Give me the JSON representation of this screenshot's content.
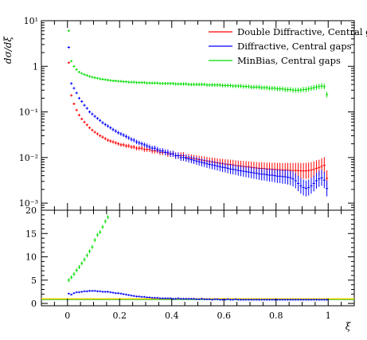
{
  "chart_data": [
    {
      "type": "scatter",
      "panel": "main",
      "ylabel": "dσ/dξ",
      "ylog": true,
      "ylim": [
        0.0007,
        10
      ],
      "xlim": [
        -0.1,
        1.1
      ],
      "y_tick_labels": [
        "10⁻³",
        "10⁻²",
        "10⁻¹",
        "1",
        "10¹"
      ],
      "legend_position": "top-right",
      "series": [
        {
          "name": "Double Diffractive, Central gaps",
          "color": "#ff0000",
          "x": [
            0.005,
            0.015,
            0.025,
            0.035,
            0.045,
            0.055,
            0.065,
            0.075,
            0.085,
            0.095,
            0.105,
            0.115,
            0.125,
            0.135,
            0.145,
            0.155,
            0.165,
            0.175,
            0.185,
            0.195,
            0.205,
            0.215,
            0.225,
            0.235,
            0.245,
            0.255,
            0.265,
            0.275,
            0.285,
            0.295,
            0.305,
            0.315,
            0.325,
            0.335,
            0.345,
            0.355,
            0.365,
            0.375,
            0.385,
            0.395,
            0.405,
            0.415,
            0.425,
            0.435,
            0.445,
            0.455,
            0.465,
            0.475,
            0.485,
            0.495,
            0.505,
            0.515,
            0.525,
            0.535,
            0.545,
            0.555,
            0.565,
            0.575,
            0.585,
            0.595,
            0.605,
            0.615,
            0.625,
            0.635,
            0.645,
            0.655,
            0.665,
            0.675,
            0.685,
            0.695,
            0.705,
            0.715,
            0.725,
            0.735,
            0.745,
            0.755,
            0.765,
            0.775,
            0.785,
            0.795,
            0.805,
            0.815,
            0.825,
            0.835,
            0.845,
            0.855,
            0.865,
            0.875,
            0.885,
            0.895,
            0.905,
            0.915,
            0.925,
            0.935,
            0.945,
            0.955,
            0.965,
            0.975,
            0.985,
            0.995
          ],
          "y": [
            1.2,
            0.23,
            0.15,
            0.11,
            0.085,
            0.07,
            0.06,
            0.052,
            0.045,
            0.04,
            0.036,
            0.033,
            0.03,
            0.028,
            0.026,
            0.024,
            0.023,
            0.022,
            0.021,
            0.02,
            0.019,
            0.019,
            0.018,
            0.018,
            0.017,
            0.017,
            0.016,
            0.016,
            0.016,
            0.015,
            0.015,
            0.015,
            0.014,
            0.014,
            0.014,
            0.013,
            0.013,
            0.013,
            0.012,
            0.012,
            0.012,
            0.011,
            0.011,
            0.011,
            0.011,
            0.01,
            0.01,
            0.0098,
            0.0095,
            0.0093,
            0.009,
            0.0088,
            0.0086,
            0.0084,
            0.0082,
            0.008,
            0.0079,
            0.0077,
            0.0075,
            0.0074,
            0.0072,
            0.0071,
            0.007,
            0.0069,
            0.0067,
            0.0066,
            0.0065,
            0.0064,
            0.0063,
            0.0062,
            0.0061,
            0.006,
            0.0059,
            0.0058,
            0.0058,
            0.0057,
            0.0056,
            0.0056,
            0.0055,
            0.0055,
            0.0054,
            0.0054,
            0.0053,
            0.0053,
            0.0053,
            0.0052,
            0.0052,
            0.0052,
            0.0052,
            0.0051,
            0.0051,
            0.0051,
            0.0052,
            0.0053,
            0.0055,
            0.0058,
            0.006,
            0.0064,
            0.0068,
            0.0035
          ]
        },
        {
          "name": "Diffractive, Central gaps",
          "color": "#0000ff",
          "x": [
            0.005,
            0.015,
            0.025,
            0.035,
            0.045,
            0.055,
            0.065,
            0.075,
            0.085,
            0.095,
            0.105,
            0.115,
            0.125,
            0.135,
            0.145,
            0.155,
            0.165,
            0.175,
            0.185,
            0.195,
            0.205,
            0.215,
            0.225,
            0.235,
            0.245,
            0.255,
            0.265,
            0.275,
            0.285,
            0.295,
            0.305,
            0.315,
            0.325,
            0.335,
            0.345,
            0.355,
            0.365,
            0.375,
            0.385,
            0.395,
            0.405,
            0.415,
            0.425,
            0.435,
            0.445,
            0.455,
            0.465,
            0.475,
            0.485,
            0.495,
            0.505,
            0.515,
            0.525,
            0.535,
            0.545,
            0.555,
            0.565,
            0.575,
            0.585,
            0.595,
            0.605,
            0.615,
            0.625,
            0.635,
            0.645,
            0.655,
            0.665,
            0.675,
            0.685,
            0.695,
            0.705,
            0.715,
            0.725,
            0.735,
            0.745,
            0.755,
            0.765,
            0.775,
            0.785,
            0.795,
            0.805,
            0.815,
            0.825,
            0.835,
            0.845,
            0.855,
            0.865,
            0.875,
            0.885,
            0.895,
            0.905,
            0.915,
            0.925,
            0.935,
            0.945,
            0.955,
            0.965,
            0.975,
            0.985,
            0.995
          ],
          "y": [
            2.6,
            0.42,
            0.33,
            0.26,
            0.2,
            0.17,
            0.14,
            0.12,
            0.1,
            0.09,
            0.08,
            0.072,
            0.065,
            0.058,
            0.053,
            0.049,
            0.045,
            0.041,
            0.038,
            0.035,
            0.033,
            0.031,
            0.029,
            0.027,
            0.025,
            0.024,
            0.022,
            0.021,
            0.02,
            0.019,
            0.018,
            0.017,
            0.016,
            0.016,
            0.015,
            0.014,
            0.014,
            0.013,
            0.013,
            0.012,
            0.012,
            0.011,
            0.011,
            0.01,
            0.01,
            0.0097,
            0.0093,
            0.009,
            0.0087,
            0.0084,
            0.0081,
            0.0078,
            0.0076,
            0.0073,
            0.0071,
            0.0069,
            0.0067,
            0.0065,
            0.0063,
            0.0061,
            0.006,
            0.0058,
            0.0056,
            0.0055,
            0.0054,
            0.0052,
            0.0051,
            0.005,
            0.0049,
            0.0048,
            0.0047,
            0.0046,
            0.0045,
            0.0044,
            0.0043,
            0.0043,
            0.0042,
            0.0041,
            0.0041,
            0.004,
            0.0039,
            0.0039,
            0.0038,
            0.0038,
            0.0037,
            0.0036,
            0.0034,
            0.0031,
            0.0027,
            0.0024,
            0.0022,
            0.0021,
            0.0022,
            0.0024,
            0.0027,
            0.0031,
            0.0034,
            0.0036,
            0.0032,
            0.0021
          ]
        },
        {
          "name": "MinBias, Central gaps",
          "color": "#00dd00",
          "x": [
            0.005,
            0.015,
            0.025,
            0.035,
            0.045,
            0.055,
            0.065,
            0.075,
            0.085,
            0.095,
            0.105,
            0.115,
            0.125,
            0.135,
            0.145,
            0.155,
            0.165,
            0.175,
            0.185,
            0.195,
            0.205,
            0.215,
            0.225,
            0.235,
            0.245,
            0.255,
            0.265,
            0.275,
            0.285,
            0.295,
            0.305,
            0.315,
            0.325,
            0.335,
            0.345,
            0.355,
            0.365,
            0.375,
            0.385,
            0.395,
            0.405,
            0.415,
            0.425,
            0.435,
            0.445,
            0.455,
            0.465,
            0.475,
            0.485,
            0.495,
            0.505,
            0.515,
            0.525,
            0.535,
            0.545,
            0.555,
            0.565,
            0.575,
            0.585,
            0.595,
            0.605,
            0.615,
            0.625,
            0.635,
            0.645,
            0.655,
            0.665,
            0.675,
            0.685,
            0.695,
            0.705,
            0.715,
            0.725,
            0.735,
            0.745,
            0.755,
            0.765,
            0.775,
            0.785,
            0.795,
            0.805,
            0.815,
            0.825,
            0.835,
            0.845,
            0.855,
            0.865,
            0.875,
            0.885,
            0.895,
            0.905,
            0.915,
            0.925,
            0.935,
            0.945,
            0.955,
            0.965,
            0.975,
            0.985,
            0.995
          ],
          "y": [
            6.0,
            1.3,
            1.0,
            0.85,
            0.75,
            0.7,
            0.66,
            0.63,
            0.6,
            0.58,
            0.56,
            0.55,
            0.53,
            0.52,
            0.51,
            0.5,
            0.49,
            0.48,
            0.48,
            0.47,
            0.47,
            0.46,
            0.46,
            0.45,
            0.45,
            0.45,
            0.44,
            0.44,
            0.44,
            0.44,
            0.43,
            0.43,
            0.43,
            0.43,
            0.43,
            0.42,
            0.42,
            0.42,
            0.42,
            0.42,
            0.42,
            0.41,
            0.41,
            0.41,
            0.41,
            0.41,
            0.4,
            0.4,
            0.4,
            0.4,
            0.4,
            0.4,
            0.4,
            0.39,
            0.39,
            0.39,
            0.39,
            0.39,
            0.39,
            0.38,
            0.38,
            0.38,
            0.38,
            0.37,
            0.37,
            0.37,
            0.37,
            0.36,
            0.36,
            0.36,
            0.35,
            0.35,
            0.35,
            0.35,
            0.34,
            0.34,
            0.34,
            0.33,
            0.33,
            0.33,
            0.32,
            0.32,
            0.32,
            0.31,
            0.31,
            0.31,
            0.3,
            0.3,
            0.3,
            0.3,
            0.31,
            0.31,
            0.32,
            0.33,
            0.34,
            0.35,
            0.36,
            0.37,
            0.36,
            0.24
          ]
        }
      ]
    },
    {
      "type": "scatter",
      "panel": "ratio",
      "xlabel": "ξ",
      "xlim": [
        -0.1,
        1.1
      ],
      "ylim": [
        -0.5,
        20
      ],
      "x_tick_labels": [
        "0",
        "0.2",
        "0.4",
        "0.6",
        "0.8",
        "1"
      ],
      "y_tick_labels": [
        "0",
        "5",
        "10",
        "15",
        "20"
      ],
      "reference_line": {
        "y": 1,
        "color": "#ffd700"
      },
      "series": [
        {
          "color": "#00dd00",
          "x": [
            0.005,
            0.015,
            0.025,
            0.035,
            0.045,
            0.055,
            0.065,
            0.075,
            0.085,
            0.095,
            0.105,
            0.115,
            0.125,
            0.135,
            0.145,
            0.155
          ],
          "y": [
            5.0,
            5.6,
            6.3,
            7.1,
            7.8,
            8.6,
            9.4,
            10.3,
            11.2,
            12.1,
            13.6,
            14.7,
            15.3,
            16.4,
            17.6,
            18.5
          ]
        },
        {
          "color": "#0000ff",
          "x": [
            0.005,
            0.015,
            0.025,
            0.035,
            0.045,
            0.055,
            0.065,
            0.075,
            0.085,
            0.095,
            0.105,
            0.115,
            0.125,
            0.135,
            0.145,
            0.155,
            0.165,
            0.175,
            0.185,
            0.195,
            0.205,
            0.215,
            0.225,
            0.235,
            0.245,
            0.255,
            0.265,
            0.275,
            0.285,
            0.295,
            0.305,
            0.315,
            0.325,
            0.335,
            0.345,
            0.355,
            0.365,
            0.375,
            0.385,
            0.395,
            0.405,
            0.415,
            0.425,
            0.435,
            0.445,
            0.455,
            0.465,
            0.475,
            0.485,
            0.495,
            0.505,
            0.515,
            0.525,
            0.535,
            0.545,
            0.555,
            0.565,
            0.575,
            0.585,
            0.595,
            0.605,
            0.615,
            0.625,
            0.635,
            0.645,
            0.655,
            0.665,
            0.675,
            0.685,
            0.695,
            0.705,
            0.715,
            0.725,
            0.735,
            0.745,
            0.755,
            0.765,
            0.775,
            0.785,
            0.795,
            0.805,
            0.815,
            0.825,
            0.835,
            0.845,
            0.855,
            0.865,
            0.875,
            0.885,
            0.895,
            0.905,
            0.915,
            0.925,
            0.935,
            0.945,
            0.955,
            0.965,
            0.975,
            0.985,
            0.995
          ],
          "y": [
            2.1,
            1.9,
            2.2,
            2.4,
            2.4,
            2.5,
            2.6,
            2.6,
            2.7,
            2.7,
            2.7,
            2.6,
            2.6,
            2.5,
            2.5,
            2.5,
            2.4,
            2.3,
            2.2,
            2.2,
            2.1,
            2.0,
            1.9,
            1.8,
            1.7,
            1.6,
            1.5,
            1.5,
            1.4,
            1.4,
            1.3,
            1.3,
            1.2,
            1.2,
            1.2,
            1.1,
            1.1,
            1.1,
            1.1,
            1.1,
            1.0,
            1.0,
            1.1,
            1.0,
            1.0,
            1.0,
            1.0,
            1.0,
            1.0,
            0.9,
            0.9,
            1.0,
            0.9,
            0.9,
            0.9,
            0.8,
            0.9,
            0.9,
            0.8,
            0.8,
            0.8,
            0.9,
            0.8,
            0.8,
            0.9,
            0.8,
            0.8,
            0.8,
            0.8,
            0.8,
            0.8,
            0.8,
            0.8,
            0.8,
            0.8,
            0.8,
            0.8,
            0.8,
            0.8,
            0.8,
            0.8,
            0.8,
            0.8,
            0.8,
            0.8,
            0.8,
            0.8,
            0.8,
            0.8,
            0.8,
            0.8,
            0.8,
            0.8,
            0.8,
            0.8,
            0.8,
            0.8,
            0.8,
            0.8,
            0.8
          ]
        }
      ]
    }
  ]
}
